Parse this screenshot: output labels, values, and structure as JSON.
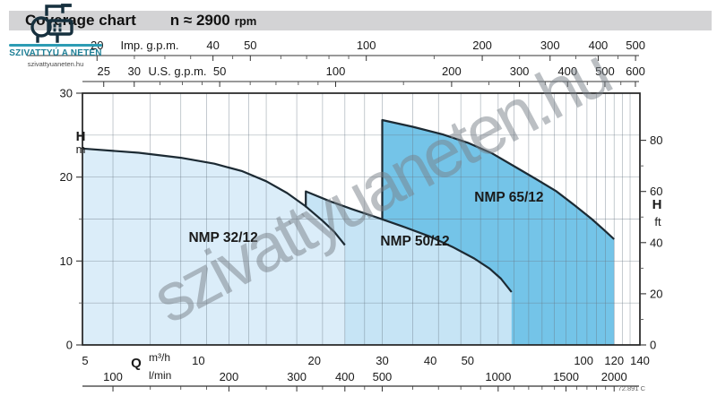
{
  "header": {
    "title": "Coverage chart",
    "speed": "n ≈ 2900",
    "speed_unit": "rpm"
  },
  "logo": {
    "brand": "SZIVATTYÚ A NETEN",
    "domain": "szivattyuaneten.hu"
  },
  "watermark": {
    "text": "szivattyuaneten.hu"
  },
  "footer": {
    "code_ref": "72.891 C"
  },
  "colors": {
    "titlebar_bg": "#d3d3d5",
    "brand_teal": "#1e7f96",
    "outline": "#1c2a33",
    "grid": "rgba(104,118,132,0.55)",
    "box": "#222222",
    "fill_32": "#dbedf9",
    "fill_50": "#c6e4f5",
    "fill_65": "#74c4e8"
  },
  "chart_data": {
    "type": "area",
    "title": "Coverage chart",
    "subtitle": "n ≈ 2900 rpm",
    "x_range_m3h": [
      5,
      140
    ],
    "y_range_m": [
      0,
      30
    ],
    "grid": true,
    "gridlines_h_m": [
      5,
      10,
      15,
      20,
      25
    ],
    "gridlines_v_lmin": [
      100,
      125,
      150,
      175,
      200,
      225,
      250,
      300,
      350,
      400,
      450,
      500,
      600,
      700,
      800,
      900,
      1000,
      1100,
      1200,
      1300,
      1400,
      1500,
      1600,
      1700,
      1800,
      1900,
      2000,
      2100,
      2200
    ],
    "x_axes": [
      {
        "id": "imp_gpm",
        "label": "Imp. g.p.m.",
        "unit_to_m3h": 0.27276,
        "labeled_ticks": [
          20,
          40,
          50,
          100,
          200,
          300,
          400,
          500
        ],
        "minor_ticks": [
          25,
          30,
          35,
          45,
          60,
          70,
          80,
          90,
          150,
          250,
          350,
          450
        ]
      },
      {
        "id": "us_gpm",
        "label": "U.S. g.p.m.",
        "unit_to_m3h": 0.22712,
        "labeled_ticks": [
          25,
          30,
          50,
          100,
          200,
          300,
          400,
          500,
          600
        ],
        "minor_ticks": [
          35,
          40,
          45,
          60,
          70,
          80,
          90,
          150,
          250,
          350,
          450,
          550
        ]
      },
      {
        "id": "m3h",
        "label_q": "Q",
        "label": "m³/h",
        "labeled_ticks": [
          5,
          10,
          20,
          30,
          40,
          50,
          100,
          120,
          140
        ]
      },
      {
        "id": "lmin",
        "label": "l/min",
        "unit_to_m3h": 0.06,
        "labeled_ticks": [
          100,
          200,
          300,
          400,
          500,
          1000,
          1500,
          2000
        ],
        "minor_ticks": [
          125,
          150,
          175,
          250,
          350,
          450,
          600,
          700,
          800,
          900,
          1100,
          1200,
          1300,
          1400,
          1600,
          1700,
          1800,
          1900
        ]
      }
    ],
    "y_axis_left": {
      "label": "H",
      "unit": "m",
      "ticks": [
        0,
        10,
        20,
        30
      ],
      "minor_ticks": [
        5,
        15,
        25
      ]
    },
    "y_axis_right": {
      "label": "H",
      "unit": "ft",
      "ticks": [
        0,
        20,
        40,
        60,
        80
      ],
      "minor_ticks": [
        10,
        30,
        50,
        70
      ],
      "ft_per_m": 3.2808
    },
    "series": [
      {
        "name": "NMP 32/12",
        "fill": "#dbedf9",
        "q_min": 5,
        "q_max": 24,
        "curve_q_h": [
          [
            5,
            23.4
          ],
          [
            7,
            22.9
          ],
          [
            9,
            22.3
          ],
          [
            11,
            21.6
          ],
          [
            13,
            20.7
          ],
          [
            15,
            19.5
          ],
          [
            17,
            18.1
          ],
          [
            19,
            16.5
          ],
          [
            21,
            14.8
          ],
          [
            22.5,
            13.5
          ],
          [
            24,
            11.9
          ]
        ],
        "label_pos_q_h": [
          11.6,
          12.8
        ],
        "stroke_left_to_h": null
      },
      {
        "name": "NMP 50/12",
        "fill": "#c6e4f5",
        "q_min": 19,
        "q_max": 65,
        "curve_q_h": [
          [
            19,
            18.3
          ],
          [
            22,
            17.1
          ],
          [
            25,
            16.2
          ],
          [
            29,
            15.2
          ],
          [
            34,
            14.1
          ],
          [
            40,
            12.9
          ],
          [
            46,
            11.6
          ],
          [
            52,
            10.3
          ],
          [
            57,
            9.1
          ],
          [
            61,
            7.9
          ],
          [
            65,
            6.3
          ]
        ],
        "label_pos_q_h": [
          36.5,
          12.4
        ],
        "stroke_left_to_h": 16.4
      },
      {
        "name": "NMP 65/12",
        "fill": "#74c4e8",
        "q_min": 30,
        "q_max": 120,
        "curve_q_h": [
          [
            30,
            26.8
          ],
          [
            36,
            26.0
          ],
          [
            43,
            25.1
          ],
          [
            50,
            24.1
          ],
          [
            58,
            22.8
          ],
          [
            66,
            21.3
          ],
          [
            75,
            19.8
          ],
          [
            85,
            18.3
          ],
          [
            95,
            16.6
          ],
          [
            105,
            15.0
          ],
          [
            113,
            13.7
          ],
          [
            120,
            12.6
          ]
        ],
        "label_pos_q_h": [
          64,
          17.6
        ],
        "stroke_left_to_h": 15.0
      }
    ]
  }
}
